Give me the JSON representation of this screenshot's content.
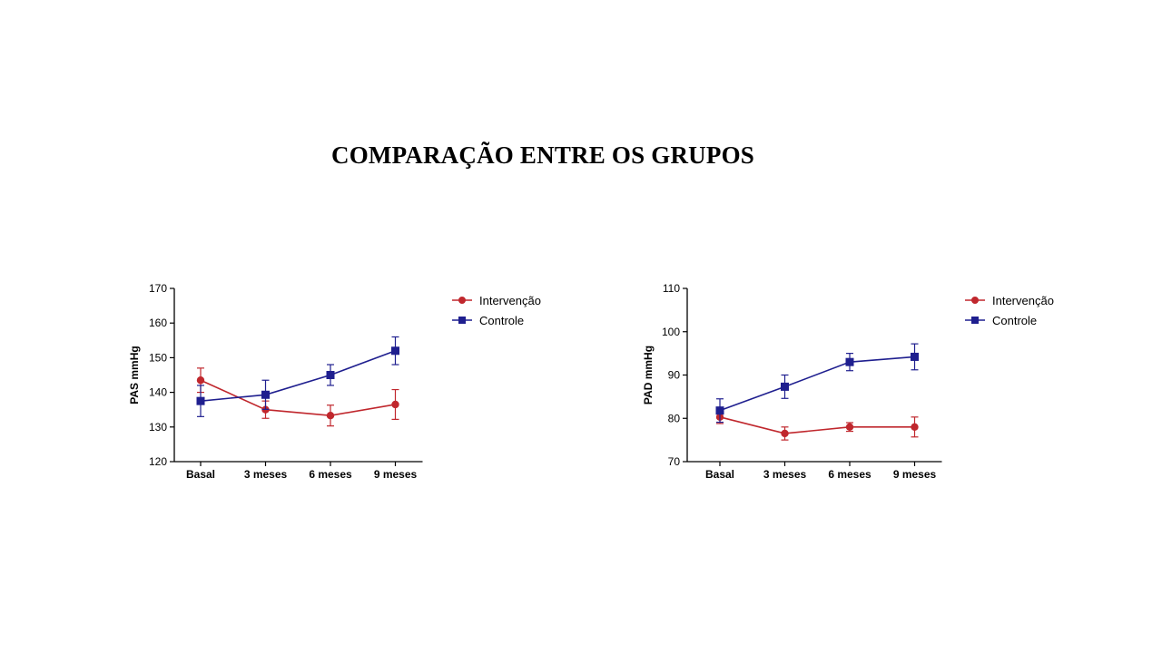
{
  "slide": {
    "title": "COMPARAÇÃO ENTRE OS GRUPOS"
  },
  "colors": {
    "intervencao": "#c0272d",
    "controle": "#1f1f8f"
  },
  "chart_data": [
    {
      "type": "line",
      "ylabel": "PAS mmHg",
      "xlabel": "",
      "ylim": [
        120,
        170
      ],
      "yticks": [
        120,
        130,
        140,
        150,
        160,
        170
      ],
      "categories": [
        "Basal",
        "3 meses",
        "6 meses",
        "9 meses"
      ],
      "legend_position": "top-right",
      "grid": false,
      "series": [
        {
          "name": "Intervenção",
          "marker": "circle",
          "color": "#c0272d",
          "values": [
            143.5,
            135,
            133.3,
            136.5
          ],
          "error": [
            3.5,
            2.5,
            3,
            4.3
          ]
        },
        {
          "name": "Controle",
          "marker": "square",
          "color": "#1f1f8f",
          "values": [
            137.5,
            139.3,
            145,
            152
          ],
          "error": [
            4.5,
            4.2,
            3,
            4
          ]
        }
      ]
    },
    {
      "type": "line",
      "ylabel": "PAD mmHg",
      "xlabel": "",
      "ylim": [
        70,
        110
      ],
      "yticks": [
        70,
        80,
        90,
        100,
        110
      ],
      "categories": [
        "Basal",
        "3 meses",
        "6 meses",
        "9 meses"
      ],
      "legend_position": "top-right",
      "grid": false,
      "series": [
        {
          "name": "Intervenção",
          "marker": "circle",
          "color": "#c0272d",
          "values": [
            80.3,
            76.5,
            78,
            78
          ],
          "error": [
            1.5,
            1.5,
            1,
            2.3
          ]
        },
        {
          "name": "Controle",
          "marker": "square",
          "color": "#1f1f8f",
          "values": [
            81.8,
            87.3,
            93,
            94.2
          ],
          "error": [
            2.7,
            2.7,
            2,
            3
          ]
        }
      ]
    }
  ]
}
